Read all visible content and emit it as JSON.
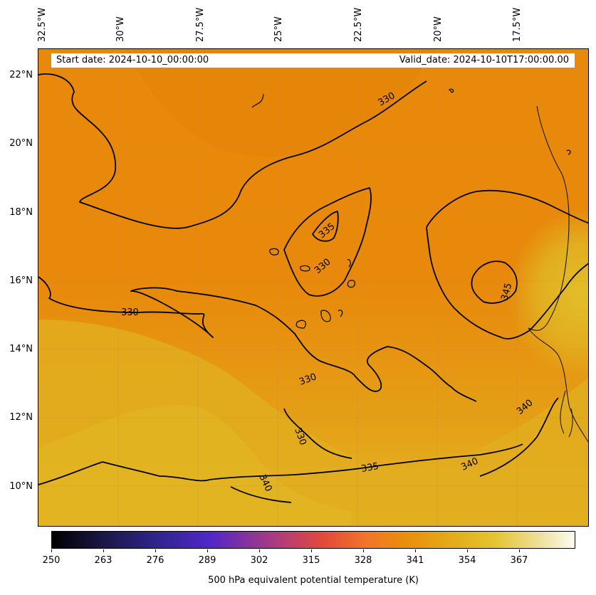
{
  "info": {
    "start_date": "Start date: 2024-10-10_00:00:00",
    "valid_date": "Valid_date: 2024-10-10T17:00:00.00"
  },
  "longitude_labels": [
    "32.5°W",
    "30°W",
    "27.5°W",
    "25°W",
    "22.5°W",
    "20°W",
    "17.5°W"
  ],
  "latitude_labels": [
    "22°N",
    "20°N",
    "18°N",
    "16°N",
    "14°N",
    "12°N",
    "10°N"
  ],
  "contour_labels": [
    "330",
    "335",
    "330",
    "330",
    "345",
    "330",
    "330",
    "335",
    "340",
    "340",
    "340"
  ],
  "colorbar": {
    "title": "500 hPa equivalent potential temperature (K)",
    "ticks": [
      "250",
      "263",
      "276",
      "289",
      "302",
      "315",
      "328",
      "341",
      "354",
      "367"
    ],
    "colors": {
      "low": "#000000",
      "mid_purple": "#4f27c8",
      "mid_red": "#e34a38",
      "orange": "#ea8f0c",
      "gold": "#e2b01c",
      "high": "#fbfbf2"
    }
  }
}
